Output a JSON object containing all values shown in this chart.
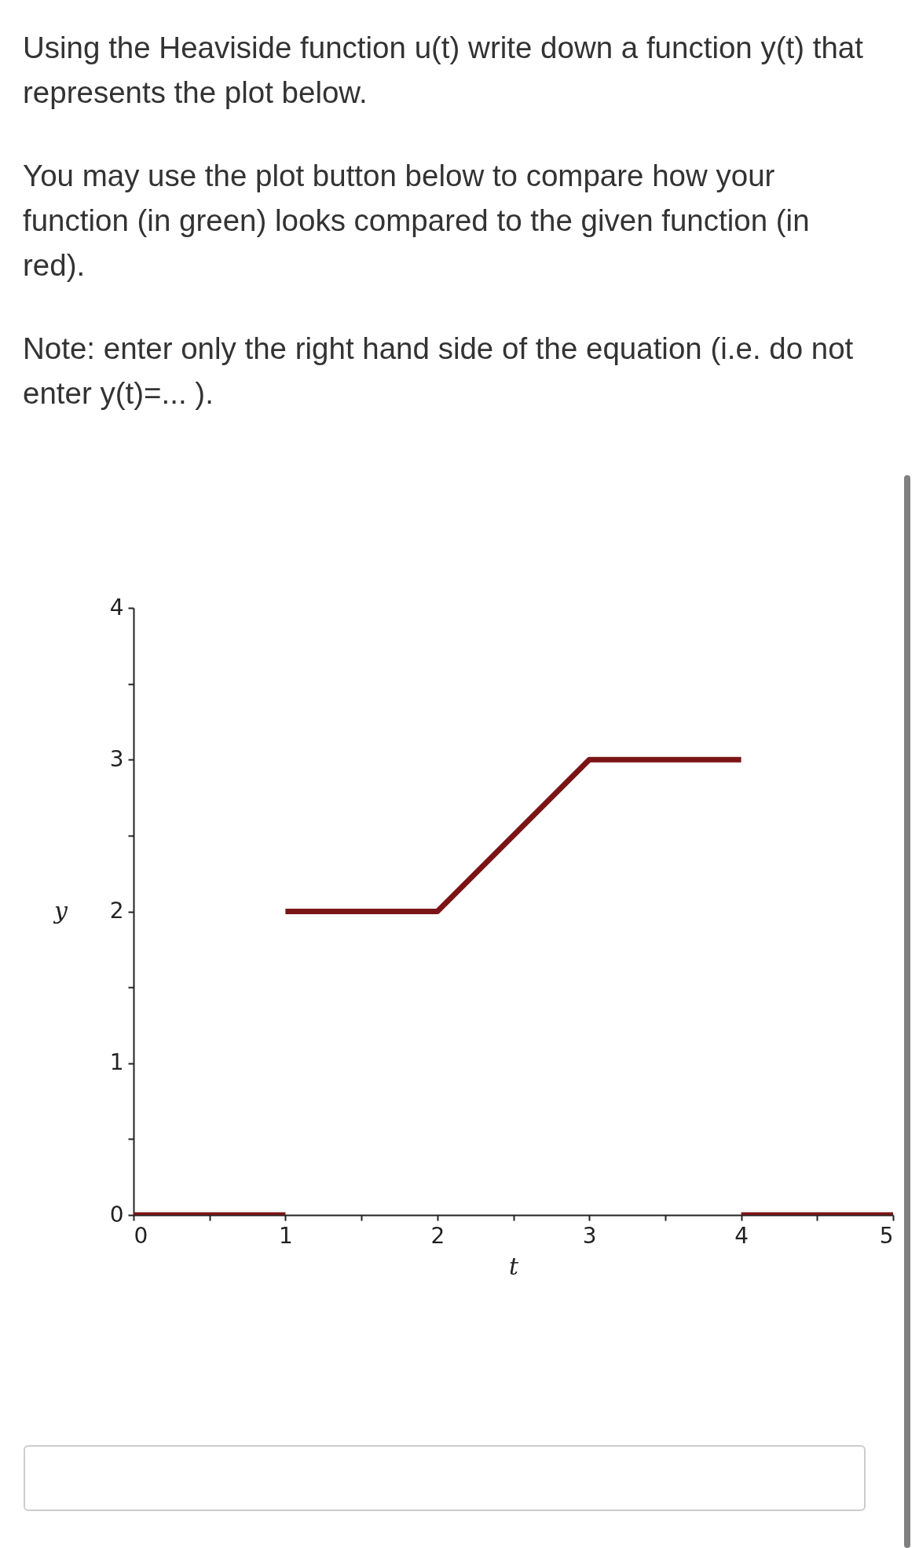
{
  "chart_data": {
    "type": "line",
    "title": "Using the Heaviside function u(t) write down a function y(t) that represents the plot below.",
    "subtitle": "You may use the plot button below to compare how your function (in green) looks compared to the given function (in red).",
    "annotations": [
      "Note: enter only the right hand side of the equation (i.e. do not enter y(t)=... )."
    ],
    "xlabel": "t",
    "ylabel": "y",
    "series": [
      {
        "color": "#7b1416",
        "x": [
          0,
          1
        ],
        "values": [
          0,
          0
        ]
      },
      {
        "color": "#7b1416",
        "x": [
          1,
          2,
          3,
          4
        ],
        "values": [
          2,
          2,
          3,
          3
        ]
      },
      {
        "color": "#7b1416",
        "x": [
          4,
          5
        ],
        "values": [
          0,
          0
        ]
      }
    ],
    "xlim": [
      0,
      5
    ],
    "ylim": [
      0,
      4
    ],
    "xticks": [
      0,
      {
        "value": 0.5,
        "label": null
      },
      1,
      {
        "value": 1.5,
        "label": null
      },
      2,
      {
        "value": 2.5,
        "label": null
      },
      3,
      {
        "value": 3.5,
        "label": null
      },
      4,
      {
        "value": 4.5,
        "label": null
      },
      5
    ],
    "yticks": [
      0,
      {
        "value": 0.5,
        "label": null
      },
      1,
      {
        "value": 1.5,
        "label": null
      },
      2,
      {
        "value": 2.5,
        "label": null
      },
      3,
      {
        "value": 3.5,
        "label": null
      },
      4
    ],
    "line_style": "solid"
  }
}
